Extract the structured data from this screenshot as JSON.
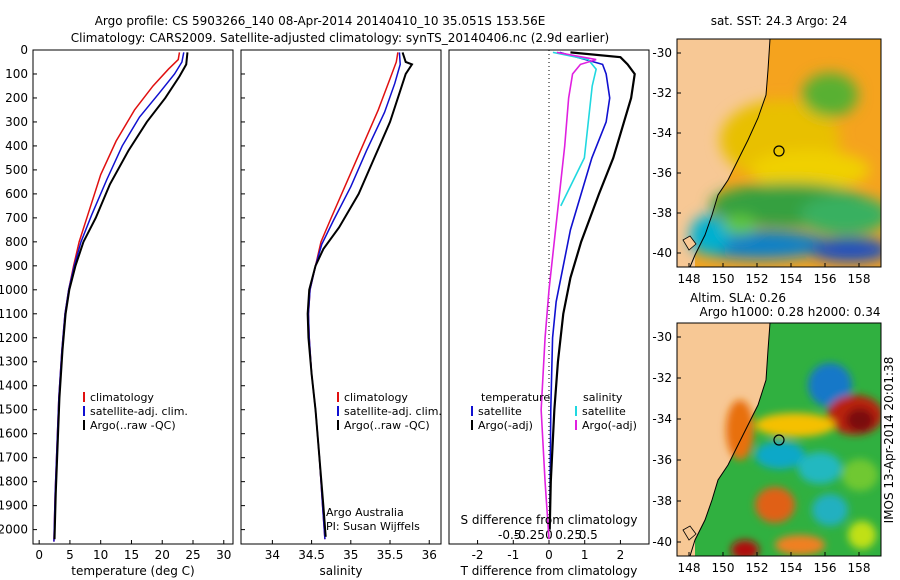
{
  "title_line1": "Argo profile: CS 5903266_140 08-Apr-2014 20140410_10 35.051S 153.56E",
  "title_line2": "Climatology: CARS2009. Satellite-adjusted climatology: synTS_20140406.nc (2.9d earlier)",
  "colors": {
    "climatology": "#e01010",
    "satellite": "#1010d0",
    "argo": "#000000",
    "s_satellite": "#20d8e0",
    "s_argo": "#e020e0",
    "land": "#f7c895"
  },
  "chart_data": [
    {
      "id": "temperature",
      "type": "line",
      "xlabel": "temperature (deg C)",
      "ylabel": "",
      "xlim": [
        -1,
        31.5
      ],
      "ylim": [
        2060,
        0
      ],
      "xticks": [
        "0",
        "5",
        "10",
        "15",
        "20",
        "25",
        "30"
      ],
      "yticks": [
        "0",
        "100",
        "200",
        "300",
        "400",
        "500",
        "600",
        "700",
        "800",
        "900",
        "1000",
        "1100",
        "1200",
        "1300",
        "1400",
        "1500",
        "1600",
        "1700",
        "1800",
        "1900",
        "2000"
      ],
      "legend": [
        "climatology",
        "satellite-adj. clim.",
        "Argo(..raw -QC)"
      ],
      "series": [
        {
          "name": "climatology",
          "color": "#e01010",
          "points": [
            [
              22.8,
              10
            ],
            [
              22.6,
              40
            ],
            [
              21,
              80
            ],
            [
              18.5,
              150
            ],
            [
              15.5,
              250
            ],
            [
              12.5,
              380
            ],
            [
              10,
              520
            ],
            [
              8,
              680
            ],
            [
              6.5,
              800
            ],
            [
              5.6,
              900
            ],
            [
              4.8,
              1000
            ],
            [
              4.2,
              1100
            ],
            [
              3.7,
              1250
            ],
            [
              3.2,
              1450
            ],
            [
              2.9,
              1650
            ],
            [
              2.6,
              1850
            ],
            [
              2.4,
              2050
            ]
          ]
        },
        {
          "name": "satellite-adj. clim.",
          "color": "#1010d0",
          "points": [
            [
              23.5,
              10
            ],
            [
              23.2,
              50
            ],
            [
              22,
              100
            ],
            [
              19.5,
              180
            ],
            [
              16.3,
              280
            ],
            [
              13.5,
              400
            ],
            [
              11,
              540
            ],
            [
              8.5,
              690
            ],
            [
              6.8,
              800
            ],
            [
              5.7,
              900
            ],
            [
              4.8,
              1000
            ],
            [
              4.2,
              1100
            ],
            [
              3.7,
              1250
            ],
            [
              3.2,
              1450
            ],
            [
              2.9,
              1650
            ],
            [
              2.6,
              1850
            ],
            [
              2.4,
              2050
            ]
          ]
        },
        {
          "name": "Argo(..raw -QC)",
          "color": "#000000",
          "points": [
            [
              24.1,
              10
            ],
            [
              23.9,
              60
            ],
            [
              22.8,
              110
            ],
            [
              20.5,
              200
            ],
            [
              17.5,
              300
            ],
            [
              14.5,
              420
            ],
            [
              11.5,
              560
            ],
            [
              9.2,
              700
            ],
            [
              7.2,
              800
            ],
            [
              5.9,
              900
            ],
            [
              4.9,
              1000
            ],
            [
              4.3,
              1100
            ],
            [
              3.8,
              1250
            ],
            [
              3.3,
              1450
            ],
            [
              3,
              1650
            ],
            [
              2.7,
              1850
            ],
            [
              2.5,
              2040
            ]
          ]
        }
      ]
    },
    {
      "id": "salinity",
      "type": "line",
      "xlabel": "salinity",
      "ylabel": "",
      "xlim": [
        33.6,
        36.15
      ],
      "ylim": [
        2060,
        0
      ],
      "xticks": [
        "34",
        "34.5",
        "35",
        "35.5",
        "36"
      ],
      "legend": [
        "climatology",
        "satellite-adj. clim.",
        "Argo(..raw -QC)"
      ],
      "credit": [
        "Argo Australia",
        "PI: Susan Wijffels"
      ],
      "series": [
        {
          "name": "climatology",
          "color": "#e01010",
          "points": [
            [
              35.6,
              10
            ],
            [
              35.58,
              50
            ],
            [
              35.5,
              120
            ],
            [
              35.35,
              250
            ],
            [
              35.15,
              400
            ],
            [
              34.95,
              550
            ],
            [
              34.75,
              700
            ],
            [
              34.62,
              800
            ],
            [
              34.55,
              900
            ],
            [
              34.48,
              1000
            ],
            [
              34.46,
              1100
            ],
            [
              34.47,
              1200
            ],
            [
              34.5,
              1350
            ],
            [
              34.55,
              1500
            ],
            [
              34.6,
              1700
            ],
            [
              34.64,
              1900
            ],
            [
              34.67,
              2040
            ]
          ]
        },
        {
          "name": "satellite-adj. clim.",
          "color": "#1010d0",
          "points": [
            [
              35.62,
              10
            ],
            [
              35.63,
              60
            ],
            [
              35.56,
              140
            ],
            [
              35.43,
              260
            ],
            [
              35.2,
              420
            ],
            [
              35,
              570
            ],
            [
              34.78,
              710
            ],
            [
              34.63,
              810
            ],
            [
              34.55,
              900
            ],
            [
              34.48,
              1000
            ],
            [
              34.46,
              1100
            ],
            [
              34.47,
              1200
            ],
            [
              34.5,
              1350
            ],
            [
              34.55,
              1500
            ],
            [
              34.6,
              1700
            ],
            [
              34.64,
              1900
            ],
            [
              34.67,
              2040
            ]
          ]
        },
        {
          "name": "Argo(..raw -QC)",
          "color": "#000000",
          "points": [
            [
              35.66,
              10
            ],
            [
              35.7,
              50
            ],
            [
              35.78,
              60
            ],
            [
              35.7,
              100
            ],
            [
              35.62,
              180
            ],
            [
              35.5,
              300
            ],
            [
              35.3,
              450
            ],
            [
              35.1,
              600
            ],
            [
              34.85,
              740
            ],
            [
              34.65,
              830
            ],
            [
              34.55,
              900
            ],
            [
              34.47,
              1000
            ],
            [
              34.45,
              1100
            ],
            [
              34.46,
              1200
            ],
            [
              34.5,
              1350
            ],
            [
              34.55,
              1500
            ],
            [
              34.6,
              1700
            ],
            [
              34.65,
              1900
            ],
            [
              34.68,
              2030
            ]
          ]
        }
      ]
    },
    {
      "id": "difference",
      "type": "line",
      "xlabel": "T difference from climatology",
      "xlabel_top": "S difference from climatology",
      "xlim": [
        -2.8,
        2.8
      ],
      "ylim": [
        2060,
        0
      ],
      "xticks": [
        "-2",
        "-1",
        "0",
        "1",
        "2"
      ],
      "xticks_s": [
        "-0.5",
        "-0.25",
        "0",
        "0.25",
        "0.5"
      ],
      "legend_t": {
        "title": "temperature",
        "items": [
          "satellite",
          "Argo(-adj)"
        ]
      },
      "legend_s": {
        "title": "salinity",
        "items": [
          "satellite",
          "Argo(-adj)"
        ]
      },
      "series": [
        {
          "name": "T satellite",
          "color": "#1010d0",
          "points": [
            [
              0.3,
              10
            ],
            [
              1.5,
              60
            ],
            [
              1.6,
              100
            ],
            [
              1.7,
              200
            ],
            [
              1.6,
              300
            ],
            [
              1.2,
              450
            ],
            [
              0.9,
              600
            ],
            [
              0.6,
              750
            ],
            [
              0.4,
              900
            ],
            [
              0.2,
              1050
            ],
            [
              0.1,
              1200
            ],
            [
              0.05,
              1500
            ],
            [
              0.02,
              2000
            ]
          ]
        },
        {
          "name": "T Argo(-adj)",
          "color": "#000000",
          "points": [
            [
              0.6,
              10
            ],
            [
              2,
              30
            ],
            [
              2.2,
              60
            ],
            [
              2.4,
              100
            ],
            [
              2.3,
              200
            ],
            [
              2.1,
              300
            ],
            [
              1.8,
              450
            ],
            [
              1.4,
              600
            ],
            [
              0.9,
              800
            ],
            [
              0.6,
              950
            ],
            [
              0.4,
              1100
            ],
            [
              0.25,
              1300
            ],
            [
              0.15,
              1500
            ],
            [
              0.05,
              1800
            ],
            [
              0.02,
              2000
            ]
          ]
        },
        {
          "name": "S satellite",
          "color": "#20d8e0",
          "points": [
            [
              0.05,
              10
            ],
            [
              0.5,
              40
            ],
            [
              0.6,
              80
            ],
            [
              0.55,
              150
            ],
            [
              0.5,
              300
            ],
            [
              0.45,
              450
            ],
            [
              0.3,
              550
            ],
            [
              0.15,
              650
            ]
          ]
        },
        {
          "name": "S Argo(-adj)",
          "color": "#e020e0",
          "points": [
            [
              0.1,
              10
            ],
            [
              0.6,
              40
            ],
            [
              0.4,
              60
            ],
            [
              0.3,
              100
            ],
            [
              0.25,
              200
            ],
            [
              0.2,
              400
            ],
            [
              0.15,
              550
            ],
            [
              0.1,
              700
            ],
            [
              0.05,
              850
            ],
            [
              0,
              1000
            ],
            [
              -0.05,
              1200
            ],
            [
              -0.1,
              1500
            ],
            [
              -0.05,
              1800
            ],
            [
              0,
              2040
            ]
          ]
        }
      ]
    }
  ],
  "maps": [
    {
      "id": "sst-map",
      "title": "sat. SST: 24.3 Argo: 24",
      "lon_ticks": [
        "148",
        "150",
        "152",
        "154",
        "156",
        "158"
      ],
      "lat_ticks": [
        "-30",
        "-32",
        "-34",
        "-36",
        "-38",
        "-40"
      ]
    },
    {
      "id": "sla-map",
      "title": "Altim. SLA: 0.26",
      "subtitle": "Argo h1000: 0.28 h2000: 0.34",
      "lon_ticks": [
        "148",
        "150",
        "152",
        "154",
        "156",
        "158"
      ],
      "lat_ticks": [
        "-30",
        "-32",
        "-34",
        "-36",
        "-38",
        "-40"
      ]
    }
  ],
  "side_label": "IMOS 13-Apr-2014 20:01:38"
}
